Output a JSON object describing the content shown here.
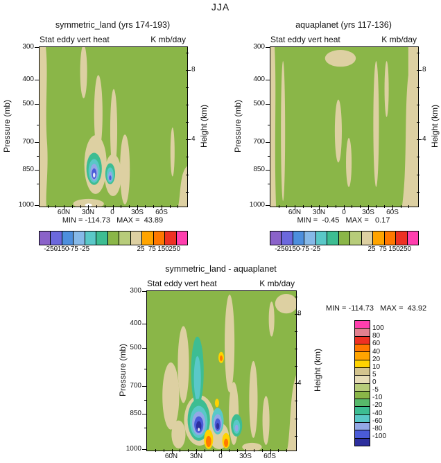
{
  "figure_title": "JJA",
  "colors": {
    "green": "#8ab648",
    "tan": "#ddd0a2",
    "teal": "#3dbd92",
    "cyan": "#5ac8c8",
    "lightblue": "#93a8e6",
    "blue": "#4a5bd8",
    "navy": "#2d2f9e",
    "paleblue": "#e4e9f8",
    "yellow": "#ffd300",
    "orange": "#ff7800",
    "white": "#ffffff"
  },
  "panels": [
    {
      "title": "symmetric_land (yrs 174-193)",
      "var_label": "Stat eddy vert heat",
      "units_label": "K mb/day",
      "ylabel": "Pressure (mb)",
      "right_ylabel": "Height (km)",
      "y_ticks": [
        "300",
        "400",
        "500",
        "700",
        "850",
        "1000"
      ],
      "right_ticks": [
        "8",
        "4"
      ],
      "x_ticks": [
        "60N",
        "30N",
        "0",
        "30S",
        "60S"
      ],
      "stats": "MIN = -114.73   MAX =  43.89"
    },
    {
      "title": "aquaplanet (yrs 117-136)",
      "var_label": "Stat eddy vert heat",
      "units_label": "K mb/day",
      "ylabel": "Pressure (mb)",
      "right_ylabel": "Height (km)",
      "y_ticks": [
        "300",
        "400",
        "500",
        "700",
        "850",
        "1000"
      ],
      "right_ticks": [
        "8",
        "4"
      ],
      "x_ticks": [
        "60N",
        "30N",
        "0",
        "30S",
        "60S"
      ],
      "stats": "MIN =  -0.45   MAX =   0.17"
    },
    {
      "title": "symmetric_land - aquaplanet",
      "var_label": "Stat eddy vert heat",
      "units_label": "K mb/day",
      "ylabel": "Pressure (mb)",
      "right_ylabel": "Height (km)",
      "y_ticks": [
        "300",
        "400",
        "500",
        "700",
        "850",
        "1000"
      ],
      "right_ticks": [
        "8",
        "4"
      ],
      "x_ticks": [
        "60N",
        "30N",
        "0",
        "30S",
        "60S"
      ],
      "stats": "MIN = -114.73   MAX =  43.92"
    }
  ],
  "colorbar_h": {
    "labels": [
      "-250",
      "-150",
      "-75",
      "-25",
      "25",
      "75",
      "150",
      "250"
    ],
    "label_boundaries": [
      1,
      2,
      3,
      4,
      9,
      10,
      11,
      12
    ],
    "colors": [
      "#8a62c9",
      "#6b68dd",
      "#4d8fdd",
      "#86b9e8",
      "#5ac8c8",
      "#3dbd92",
      "#8ab648",
      "#b7cc7a",
      "#ddd0a2",
      "#ffa400",
      "#ff7800",
      "#ee3123",
      "#ff3fae"
    ]
  },
  "colorbar_v": {
    "labels": [
      "100",
      "80",
      "60",
      "40",
      "20",
      "10",
      "5",
      "0",
      "-5",
      "-10",
      "-20",
      "-40",
      "-60",
      "-80",
      "-100"
    ],
    "label_boundaries": [
      1,
      2,
      3,
      4,
      5,
      6,
      7,
      8,
      9,
      10,
      11,
      12,
      13,
      14,
      15
    ],
    "colors": [
      "#ff3fae",
      "#e2808f",
      "#ee3123",
      "#ff7800",
      "#ffa400",
      "#ffd300",
      "#d3c48e",
      "#e6dcb6",
      "#b7cc7a",
      "#8ab648",
      "#57b96a",
      "#3dbd92",
      "#5ac8c8",
      "#93a8e6",
      "#4a5bd8",
      "#2d2f9e"
    ]
  },
  "chart_data": [
    {
      "type": "heatmap",
      "panel": "top-left",
      "title": "symmetric_land (yrs 174-193)",
      "field": "Stat eddy vert heat",
      "units": "K mb/day",
      "x_ticks": [
        "60N",
        "30N",
        "0",
        "30S",
        "60S"
      ],
      "y_axis": {
        "label": "Pressure (mb)",
        "ticks": [
          300,
          400,
          500,
          700,
          850,
          1000
        ],
        "inverted": true
      },
      "y2_axis": {
        "label": "Height (km)",
        "ticks": [
          8,
          4
        ]
      },
      "min": -114.73,
      "max": 43.89,
      "contour_levels": [
        -250,
        -150,
        -75,
        -25,
        25,
        75,
        150,
        250
      ],
      "legend_position": "bottom",
      "features": "green weak-value background with tan neutral bands; strong negative centers (teal/cyan/blue rings, pale cores) near 850 mb at about 25N and 5N; tan band along left edge and lower-right edge"
    },
    {
      "type": "heatmap",
      "panel": "top-right",
      "title": "aquaplanet (yrs 117-136)",
      "field": "Stat eddy vert heat",
      "units": "K mb/day",
      "x_ticks": [
        "60N",
        "30N",
        "0",
        "30S",
        "60S"
      ],
      "y_axis": {
        "label": "Pressure (mb)",
        "ticks": [
          300,
          400,
          500,
          700,
          850,
          1000
        ],
        "inverted": true
      },
      "y2_axis": {
        "label": "Height (km)",
        "ticks": [
          8,
          4
        ]
      },
      "min": -0.45,
      "max": 0.17,
      "contour_levels": [
        -250,
        -150,
        -75,
        -25,
        25,
        75,
        150,
        250
      ],
      "legend_position": "bottom",
      "features": "near-zero field: uniform green with faint tan vertical streaks and a tan band along the right (southern) edge"
    },
    {
      "type": "heatmap",
      "panel": "bottom",
      "title": "symmetric_land - aquaplanet",
      "field": "Stat eddy vert heat",
      "units": "K mb/day",
      "x_ticks": [
        "60N",
        "30N",
        "0",
        "30S",
        "60S"
      ],
      "y_axis": {
        "label": "Pressure (mb)",
        "ticks": [
          300,
          400,
          500,
          700,
          850,
          1000
        ],
        "inverted": true
      },
      "y2_axis": {
        "label": "Height (km)",
        "ticks": [
          8,
          4
        ]
      },
      "min": -114.73,
      "max": 43.92,
      "contour_levels": [
        -100,
        -80,
        -60,
        -40,
        -20,
        -10,
        -5,
        0,
        5,
        10,
        20,
        40,
        60,
        80,
        100
      ],
      "legend_position": "right",
      "features": "difference field: deep negative centers (navy cores < -100) near 850 mb at about 25N and 5N with teal/cyan rings, cyan column rising above 30N, yellow/orange positive patches (20-60) near 1000 mb between the centers and near 500 mb at the equator, smaller cyan center near 10S, tan bands elsewhere"
    }
  ]
}
